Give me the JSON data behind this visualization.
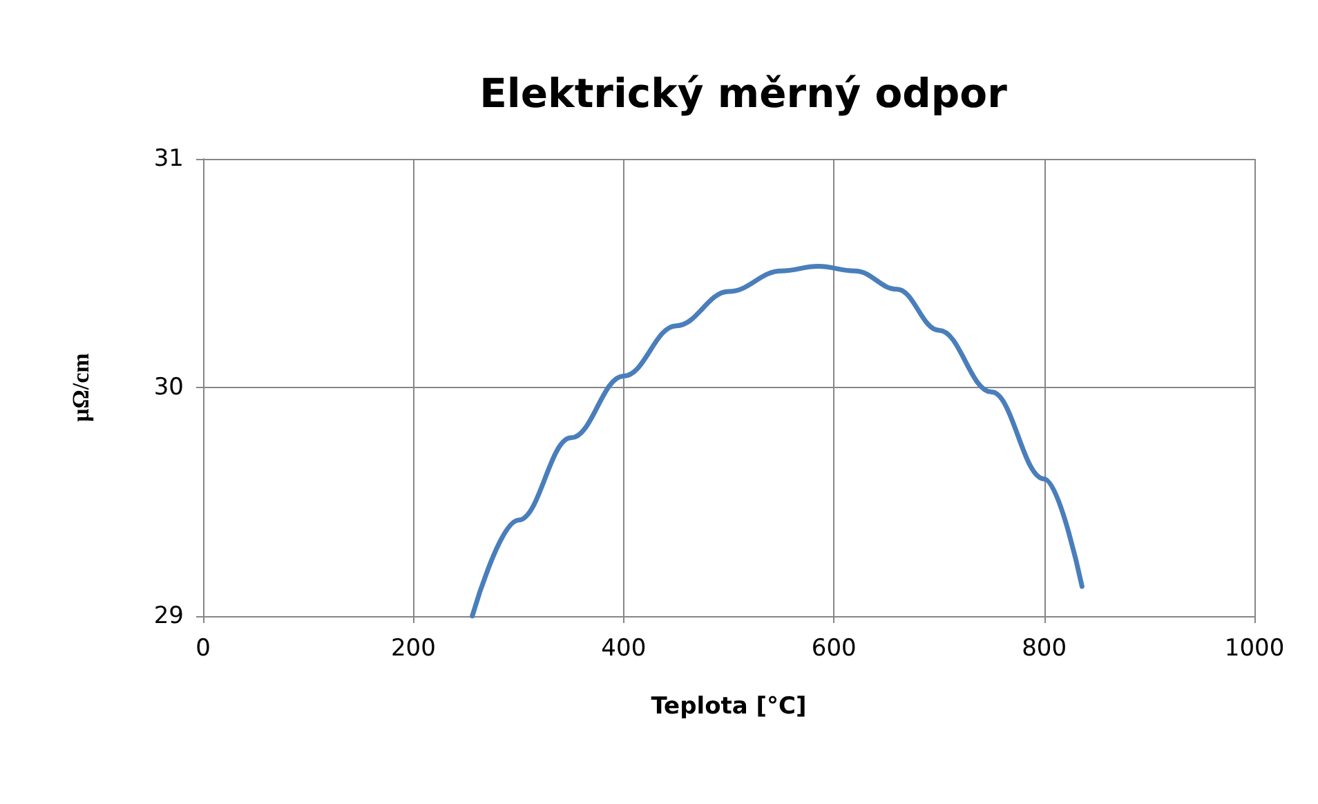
{
  "chart_data": {
    "type": "line",
    "title": "Elektrický měrný odpor",
    "xlabel": "Teplota [°C]",
    "ylabel": "μΩ/cm",
    "x": [
      256,
      300,
      350,
      400,
      450,
      500,
      550,
      585,
      620,
      660,
      700,
      750,
      800,
      836
    ],
    "series": [
      {
        "color": "#4a7ebb",
        "values": [
          29.0,
          29.42,
          29.78,
          30.05,
          30.27,
          30.42,
          30.51,
          30.53,
          30.51,
          30.43,
          30.25,
          29.98,
          29.6,
          29.13
        ]
      }
    ],
    "xlim": [
      0,
      1000
    ],
    "xticks": [
      0,
      200,
      400,
      600,
      800,
      1000
    ],
    "ylim": [
      29,
      31
    ],
    "yticks": [
      29,
      30,
      31
    ],
    "grid": true,
    "marker": "none",
    "line_style": "solid"
  }
}
